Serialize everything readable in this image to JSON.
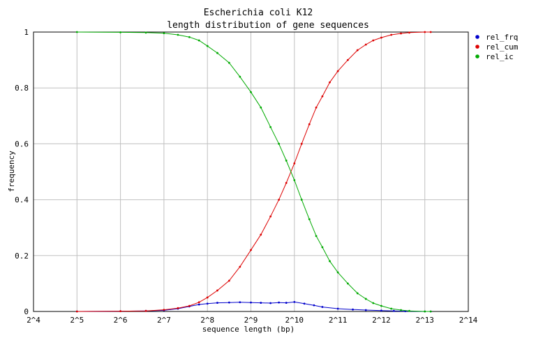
{
  "chart_data": {
    "type": "line",
    "title": "Escherichia coli K12",
    "subtitle": "length distribution of gene sequences",
    "xlabel": "sequence length (bp)",
    "ylabel": "frequency",
    "x_scale": "log2",
    "xlim": [
      16,
      16384
    ],
    "ylim": [
      0,
      1
    ],
    "x_ticks": [
      {
        "value": 16,
        "label": "2^4"
      },
      {
        "value": 32,
        "label": "2^5"
      },
      {
        "value": 64,
        "label": "2^6"
      },
      {
        "value": 128,
        "label": "2^7"
      },
      {
        "value": 256,
        "label": "2^8"
      },
      {
        "value": 512,
        "label": "2^9"
      },
      {
        "value": 1024,
        "label": "2^10"
      },
      {
        "value": 2048,
        "label": "2^11"
      },
      {
        "value": 4096,
        "label": "2^12"
      },
      {
        "value": 8192,
        "label": "2^13"
      },
      {
        "value": 16384,
        "label": "2^14"
      }
    ],
    "y_ticks": [
      {
        "value": 0,
        "label": "0"
      },
      {
        "value": 0.2,
        "label": "0.2"
      },
      {
        "value": 0.4,
        "label": "0.4"
      },
      {
        "value": 0.6,
        "label": "0.6"
      },
      {
        "value": 0.8,
        "label": "0.8"
      },
      {
        "value": 1,
        "label": "1"
      }
    ],
    "grid": true,
    "legend_position": "right",
    "series": [
      {
        "name": "rel_frq",
        "color": "#0000cc",
        "x": [
          32,
          64,
          96,
          128,
          160,
          192,
          224,
          256,
          300,
          362,
          430,
          512,
          600,
          700,
          800,
          900,
          1024,
          1200,
          1400,
          1600,
          2048,
          2600,
          3200,
          4096,
          5000,
          6000,
          8192,
          9000
        ],
        "y": [
          0.0,
          0.001,
          0.002,
          0.004,
          0.01,
          0.018,
          0.025,
          0.028,
          0.031,
          0.032,
          0.033,
          0.032,
          0.031,
          0.03,
          0.032,
          0.031,
          0.034,
          0.028,
          0.022,
          0.016,
          0.01,
          0.007,
          0.005,
          0.003,
          0.002,
          0.001,
          0.0,
          0.0
        ]
      },
      {
        "name": "rel_cum",
        "color": "#dd0000",
        "x": [
          32,
          64,
          96,
          128,
          160,
          192,
          224,
          256,
          300,
          362,
          430,
          512,
          600,
          700,
          800,
          900,
          1024,
          1150,
          1300,
          1450,
          1600,
          1800,
          2048,
          2400,
          2800,
          3200,
          3600,
          4096,
          4800,
          5600,
          6400,
          8192,
          9000
        ],
        "y": [
          0.0,
          0.001,
          0.002,
          0.006,
          0.012,
          0.02,
          0.033,
          0.05,
          0.075,
          0.11,
          0.16,
          0.22,
          0.275,
          0.34,
          0.4,
          0.46,
          0.53,
          0.6,
          0.67,
          0.73,
          0.77,
          0.82,
          0.86,
          0.9,
          0.935,
          0.955,
          0.97,
          0.98,
          0.99,
          0.995,
          0.998,
          1.0,
          1.0
        ]
      },
      {
        "name": "rel_ic",
        "color": "#00aa00",
        "x": [
          32,
          64,
          96,
          128,
          160,
          192,
          224,
          256,
          300,
          362,
          430,
          512,
          600,
          700,
          800,
          900,
          1024,
          1150,
          1300,
          1450,
          1600,
          1800,
          2048,
          2400,
          2800,
          3200,
          3600,
          4096,
          4800,
          5600,
          6400,
          8192,
          9000
        ],
        "y": [
          1.0,
          0.999,
          0.998,
          0.996,
          0.99,
          0.982,
          0.97,
          0.95,
          0.925,
          0.89,
          0.84,
          0.785,
          0.73,
          0.66,
          0.6,
          0.54,
          0.47,
          0.4,
          0.33,
          0.27,
          0.23,
          0.18,
          0.14,
          0.1,
          0.065,
          0.045,
          0.03,
          0.02,
          0.01,
          0.005,
          0.002,
          0.0,
          0.0
        ]
      }
    ]
  }
}
